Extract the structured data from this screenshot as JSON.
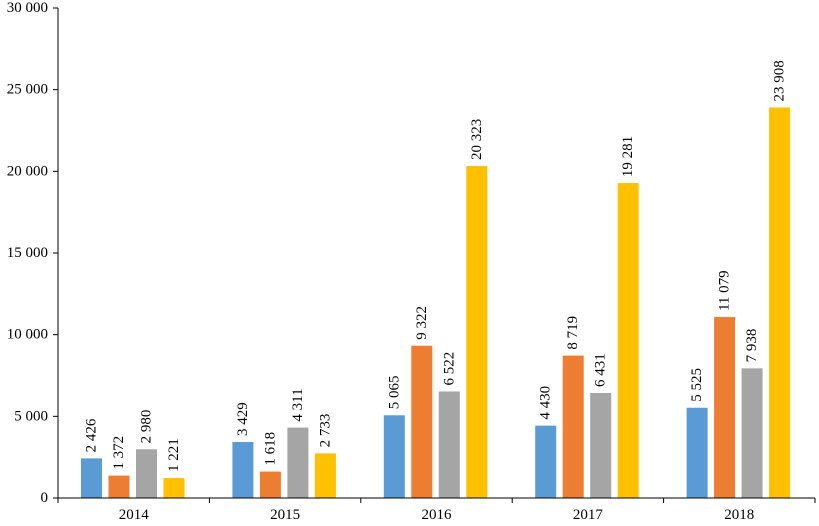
{
  "chart_data": {
    "type": "bar",
    "categories": [
      "2014",
      "2015",
      "2016",
      "2017",
      "2018"
    ],
    "series": [
      {
        "color": "#5B9BD5",
        "values": [
          2426,
          3429,
          5065,
          4430,
          5525
        ],
        "labels": [
          "2 426",
          "3 429",
          "5 065",
          "4 430",
          "5 525"
        ]
      },
      {
        "color": "#ED7D31",
        "values": [
          1372,
          1618,
          9322,
          8719,
          11079
        ],
        "labels": [
          "1 372",
          "1 618",
          "9 322",
          "8 719",
          "11 079"
        ]
      },
      {
        "color": "#A5A5A5",
        "values": [
          2980,
          4311,
          6522,
          6431,
          7938
        ],
        "labels": [
          "2 980",
          "4 311",
          "6 522",
          "6 431",
          "7 938"
        ]
      },
      {
        "color": "#FFC000",
        "values": [
          1221,
          2733,
          20323,
          19281,
          23908
        ],
        "labels": [
          "1 221",
          "2 733",
          "20 323",
          "19 281",
          "23 908"
        ]
      }
    ],
    "ylim": [
      0,
      30000
    ],
    "yticks": [
      0,
      5000,
      10000,
      15000,
      20000,
      25000,
      30000
    ],
    "ytick_labels": [
      "0",
      "5 000",
      "10 000",
      "15 000",
      "20 000",
      "25 000",
      "30 000"
    ],
    "title": "",
    "xlabel": "",
    "ylabel": "",
    "grid": false,
    "legend": "none"
  }
}
